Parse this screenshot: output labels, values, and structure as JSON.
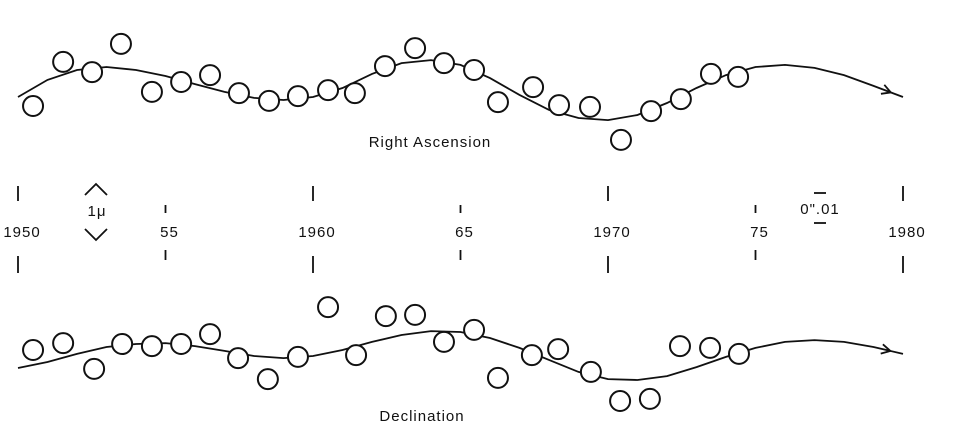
{
  "chart_data": {
    "type": "scatter",
    "xlim": [
      1950,
      1980
    ],
    "xticks": [
      1950,
      {
        "value": 1955,
        "label": "55"
      },
      1960,
      {
        "value": 1965,
        "label": "65"
      },
      1970,
      {
        "value": 1975,
        "label": "75"
      },
      1980
    ],
    "ylim": [
      -25,
      25
    ],
    "scale_labels": [
      "1μ",
      "0\".01"
    ],
    "panels": [
      {
        "title": "Right Ascension",
        "x": [
          1950.51,
          1951.53,
          1952.51,
          1953.49,
          1954.54,
          1955.53,
          1956.51,
          1957.49,
          1958.51,
          1959.49,
          1960.51,
          1961.42,
          1962.44,
          1963.46,
          1964.44,
          1965.46,
          1966.27,
          1967.46,
          1968.34,
          1969.39,
          1970.44,
          1971.46,
          1972.47,
          1973.49,
          1974.41
        ],
        "values": [
          -7,
          7.7,
          4.3,
          13.7,
          -2.3,
          1,
          3.3,
          -2.7,
          -5.3,
          -3.7,
          -1.7,
          -2.7,
          6.3,
          12.3,
          7.3,
          5,
          -5.7,
          -0.7,
          -6.7,
          -7.3,
          -18.3,
          -8.7,
          -4.7,
          3.7,
          2.7
        ],
        "curve": {
          "x": [
            1950,
            1951,
            1952,
            1953,
            1954,
            1955,
            1956,
            1957,
            1958,
            1959,
            1960,
            1961,
            1962,
            1963,
            1964,
            1965,
            1966,
            1967,
            1968,
            1969,
            1970,
            1971,
            1972,
            1973,
            1974,
            1975,
            1976,
            1977,
            1978,
            1979,
            1980
          ],
          "values": [
            -4,
            1.7,
            5,
            6,
            5,
            3,
            0.3,
            -2.3,
            -4.3,
            -5,
            -4,
            -1,
            3.7,
            7.3,
            8.3,
            6.7,
            2.3,
            -3.3,
            -8.3,
            -11,
            -11.7,
            -10,
            -6,
            -1,
            3.3,
            6,
            6.7,
            5.7,
            3.3,
            -0.3,
            -4
          ]
        }
      },
      {
        "title": "Declination",
        "x": [
          1950.51,
          1951.53,
          1952.58,
          1953.53,
          1954.54,
          1955.53,
          1956.51,
          1957.46,
          1958.47,
          1959.49,
          1960.51,
          1961.46,
          1962.47,
          1963.46,
          1964.44,
          1965.46,
          1966.27,
          1967.42,
          1968.31,
          1969.42,
          1970.41,
          1971.42,
          1972.44,
          1973.46,
          1974.44
        ],
        "values": [
          0,
          2.3,
          -6.3,
          2,
          1.3,
          2,
          5.3,
          -2.7,
          -9.7,
          -2.3,
          14.3,
          -1.7,
          11.3,
          11.7,
          2.7,
          6.7,
          -9.3,
          -1.7,
          0.3,
          -7.3,
          -17,
          -16.3,
          1.3,
          0.7,
          -1.3
        ],
        "curve": {
          "x": [
            1950,
            1951,
            1952,
            1953,
            1954,
            1955,
            1956,
            1957,
            1958,
            1959,
            1960,
            1961,
            1962,
            1963,
            1964,
            1965,
            1966,
            1967,
            1968,
            1969,
            1970,
            1971,
            1972,
            1973,
            1974,
            1975,
            1976,
            1977,
            1978,
            1979,
            1980
          ],
          "values": [
            -6,
            -4,
            -1.3,
            1,
            2,
            2.3,
            1.3,
            -0.3,
            -2,
            -2.7,
            -2,
            0,
            2.7,
            5,
            6.3,
            6,
            4,
            0.7,
            -3.3,
            -7.3,
            -9.7,
            -10,
            -8.7,
            -5.7,
            -2.3,
            0.7,
            2.7,
            3.3,
            2.7,
            1,
            -1.3
          ]
        }
      }
    ]
  }
}
